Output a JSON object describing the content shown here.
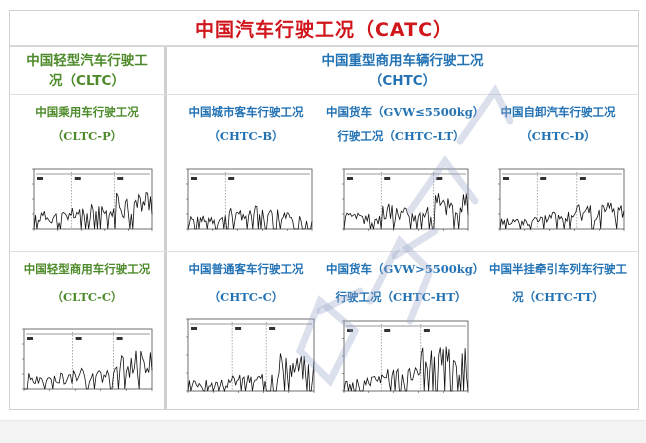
{
  "title": "中国汽车行驶工况（CATC）",
  "left_header": {
    "line1": "中国轻型汽车行驶工",
    "line2": "况（CLTC）"
  },
  "right_header": {
    "line1": "中国重型商用车辆行驶工况",
    "line2": "（CHTC）"
  },
  "cells": [
    {
      "id": "clt-p",
      "line1": "中国乘用车行驶工况",
      "line2": "（CLTC-P）",
      "color": "green"
    },
    {
      "id": "chtc-b",
      "line1": "中国城市客车行驶工况",
      "line2": "（CHTC-B）",
      "color": "blue"
    },
    {
      "id": "chtc-lt",
      "line1": "中国货车（GVW≤5500kg）",
      "line2": "行驶工况（CHTC-LT）",
      "color": "blue"
    },
    {
      "id": "chtc-d",
      "line1": "中国自卸汽车行驶工况",
      "line2": "（CHTC-D）",
      "color": "blue"
    },
    {
      "id": "cltc-c",
      "line1": "中国轻型商用车行驶工况",
      "line2": "（CLTC-C）",
      "color": "green"
    },
    {
      "id": "chtc-c",
      "line1": "中国普通客车行驶工况",
      "line2": "（CHTC-C）",
      "color": "blue"
    },
    {
      "id": "chtc-ht",
      "line1": "中国货车（GVW>5500kg）",
      "line2": "行驶工况（CHTC-HT）",
      "color": "blue"
    },
    {
      "id": "chtc-tt",
      "line1": "中国半挂牵引车列车行驶工",
      "line2": "况（CHTC-TT）",
      "color": "blue"
    }
  ],
  "colors": {
    "title_red": "#d0151b",
    "green": "#4d8a2a",
    "blue": "#2272b4",
    "watermark": "#9aa7c8"
  }
}
